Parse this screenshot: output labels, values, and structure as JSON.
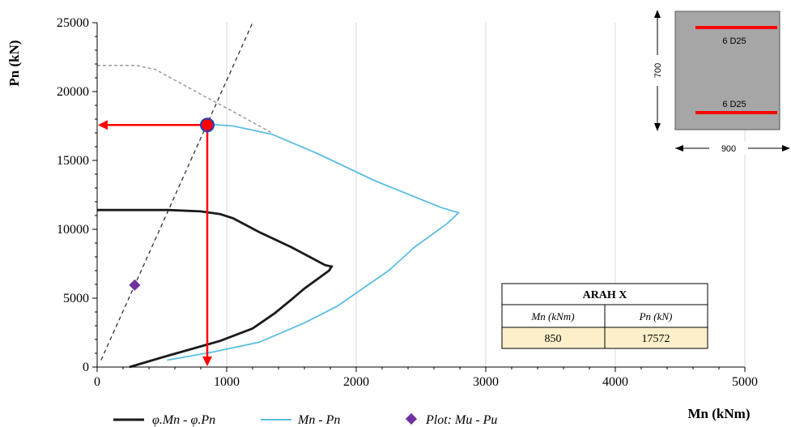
{
  "chart_data": {
    "type": "line",
    "ylabel": "Pn (kN)",
    "xlabel": "Mn (kNm)",
    "xlim": [
      0,
      5000
    ],
    "ylim": [
      0,
      25000
    ],
    "x_ticks": [
      "0",
      "1000",
      "2000",
      "3000",
      "4000",
      "5000"
    ],
    "y_ticks": [
      "0",
      "5000",
      "10000",
      "15000",
      "20000",
      "25000"
    ],
    "grid": "vertical",
    "legend_position": "bottom",
    "series": [
      {
        "name": "φ.Mn - φ.Pn",
        "color": "#1a1a1a",
        "x": [
          0,
          550,
          800,
          950,
          1050,
          1250,
          1500,
          1760,
          1810,
          1790,
          1600,
          1500,
          1370,
          1200,
          950,
          500,
          250
        ],
        "y": [
          11400,
          11400,
          11300,
          11100,
          10800,
          9800,
          8700,
          7400,
          7300,
          7000,
          5700,
          4900,
          3900,
          2800,
          1900,
          700,
          0
        ]
      },
      {
        "name": "Mn - Pn",
        "color": "#5bbde3",
        "x": [
          900,
          1050,
          1350,
          1700,
          2150,
          2650,
          2790,
          2700,
          2450,
          2250,
          1850,
          1600,
          1250,
          900,
          540
        ],
        "y": [
          17600,
          17500,
          16900,
          15500,
          13500,
          11600,
          11200,
          10400,
          8700,
          7000,
          4400,
          3200,
          1800,
          1100,
          500
        ]
      },
      {
        "name": "Plot: Mu - Pu",
        "color": "#7030a0",
        "x": [
          290
        ],
        "y": [
          5950
        ]
      }
    ],
    "reference_lines": [
      {
        "name": "dashed-cap-curve",
        "color": "#9a9a9a",
        "x": [
          0,
          300,
          450,
          800,
          1000,
          1350
        ],
        "y": [
          21900,
          21900,
          21600,
          19800,
          18800,
          17000
        ]
      },
      {
        "name": "dashed-origin-line",
        "color": "#222222",
        "x": [
          30,
          1200
        ],
        "y": [
          500,
          25000
        ]
      }
    ],
    "highlight_point": {
      "x": 850,
      "y": 17572,
      "color": "#1f3fbf"
    },
    "arrows": {
      "color": "#ff0000"
    },
    "section": {
      "height_label": "700",
      "width_label": "900",
      "top_bars": "6 D25",
      "bottom_bars": "6 D25",
      "fill": "#a6a6a6",
      "bar_color": "#ff0000"
    },
    "table": {
      "title": "ARAH X",
      "col1_header": "Mn (kNm)",
      "col2_header": "Pn (kN)",
      "col1_value": "850",
      "col2_value": "17572",
      "value_fill": "#fdefc9"
    }
  }
}
